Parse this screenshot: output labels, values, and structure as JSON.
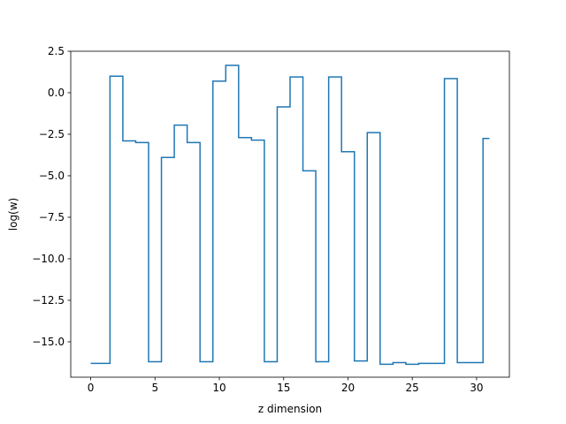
{
  "chart_data": {
    "type": "line",
    "drawstyle": "steps-mid",
    "title": "",
    "xlabel": "z dimension",
    "ylabel": "log(w)",
    "xlim": [
      -1.55,
      32.55
    ],
    "ylim": [
      -17.13,
      2.5
    ],
    "xticks": [
      0,
      5,
      10,
      15,
      20,
      25,
      30
    ],
    "xtick_labels": [
      "0",
      "5",
      "10",
      "15",
      "20",
      "25",
      "30"
    ],
    "yticks": [
      2.5,
      0.0,
      -2.5,
      -5.0,
      -7.5,
      -10.0,
      -12.5,
      -15.0
    ],
    "ytick_labels": [
      "2.5",
      "0.0",
      "−2.5",
      "−5.0",
      "−7.5",
      "−10.0",
      "−12.5",
      "−15.0"
    ],
    "grid": false,
    "series_color": "#1f77b4",
    "series": [
      {
        "x": [
          0,
          1,
          2,
          3,
          4,
          5,
          6,
          7,
          8,
          9,
          10,
          11,
          12,
          13,
          14,
          15,
          16,
          17,
          18,
          19,
          20,
          21,
          22,
          23,
          24,
          25,
          26,
          27,
          28,
          29,
          30,
          31
        ],
        "y": [
          -16.3,
          -16.3,
          1.0,
          -2.9,
          -3.0,
          -16.2,
          -3.9,
          -1.95,
          -3.0,
          -16.2,
          0.7,
          1.65,
          -2.7,
          -2.85,
          -16.2,
          -0.85,
          0.95,
          -4.7,
          -16.2,
          0.95,
          -3.55,
          -16.15,
          -2.4,
          -16.35,
          -16.25,
          -16.35,
          -16.3,
          -16.3,
          0.85,
          -16.25,
          -16.25,
          -2.75
        ]
      }
    ]
  }
}
